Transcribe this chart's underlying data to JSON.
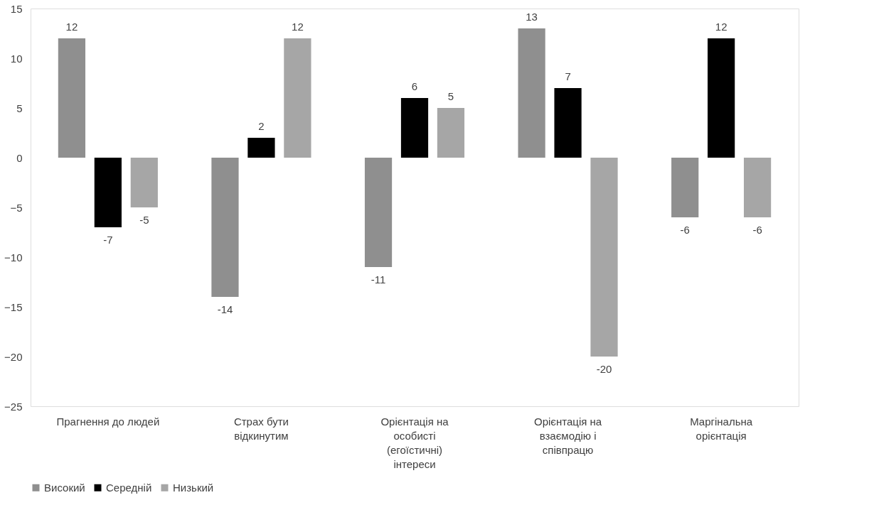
{
  "chart_data": {
    "type": "bar",
    "categories": [
      "Прагнення до людей",
      "Страх бути відкинутим",
      "Орієнтація на особисті (егоїстичні) інтереси",
      "Орієнтація на взаємодію і співпрацю",
      "Маргінальна орієнтація"
    ],
    "series": [
      {
        "name": "Високий",
        "color": "#8f8f8f",
        "values": [
          12,
          -14,
          -11,
          13,
          -6
        ]
      },
      {
        "name": "Середній",
        "color": "#000000",
        "values": [
          -7,
          2,
          6,
          7,
          12
        ]
      },
      {
        "name": "Низький",
        "color": "#a6a6a6",
        "values": [
          -5,
          12,
          5,
          -20,
          -6
        ]
      }
    ],
    "ylim": [
      -25,
      15
    ],
    "yticks": [
      -25,
      -20,
      -15,
      -10,
      -5,
      0,
      5,
      10,
      15
    ],
    "grid": false,
    "legend": "bottom",
    "data_labels": true
  }
}
